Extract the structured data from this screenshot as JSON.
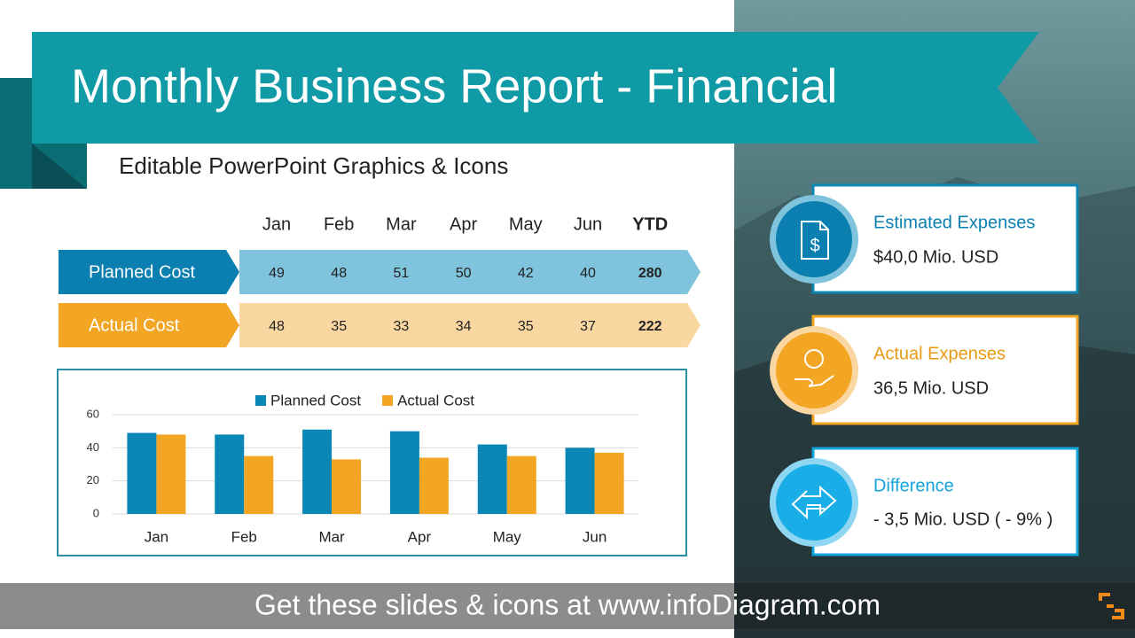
{
  "header": {
    "title": "Monthly Business Report - Financial",
    "subtitle": "Editable PowerPoint Graphics & Icons"
  },
  "table": {
    "columns": [
      "Jan",
      "Feb",
      "Mar",
      "Apr",
      "May",
      "Jun",
      "YTD"
    ],
    "rows": [
      {
        "label": "Planned Cost",
        "values": [
          49,
          48,
          51,
          50,
          42,
          40,
          280
        ]
      },
      {
        "label": "Actual Cost",
        "values": [
          48,
          35,
          33,
          34,
          35,
          37,
          222
        ]
      }
    ]
  },
  "chart_data": {
    "type": "bar",
    "categories": [
      "Jan",
      "Feb",
      "Mar",
      "Apr",
      "May",
      "Jun"
    ],
    "series": [
      {
        "name": "Planned Cost",
        "color": "#0a87b5",
        "values": [
          49,
          48,
          51,
          50,
          42,
          40
        ]
      },
      {
        "name": "Actual Cost",
        "color": "#f2a623",
        "values": [
          48,
          35,
          33,
          34,
          35,
          37
        ]
      }
    ],
    "ylim": [
      0,
      60
    ],
    "yticks": [
      0,
      20,
      40,
      60
    ],
    "grid": true,
    "legend": "top"
  },
  "cards": [
    {
      "title": "Estimated Expenses",
      "value": "$40,0 Mio. USD"
    },
    {
      "title": "Actual Expenses",
      "value": "36,5 Mio. USD"
    },
    {
      "title": "Difference",
      "value": "- 3,5 Mio. USD ( - 9% )"
    }
  ],
  "footer": {
    "text": "Get these slides & icons at www.infoDiagram.com"
  }
}
